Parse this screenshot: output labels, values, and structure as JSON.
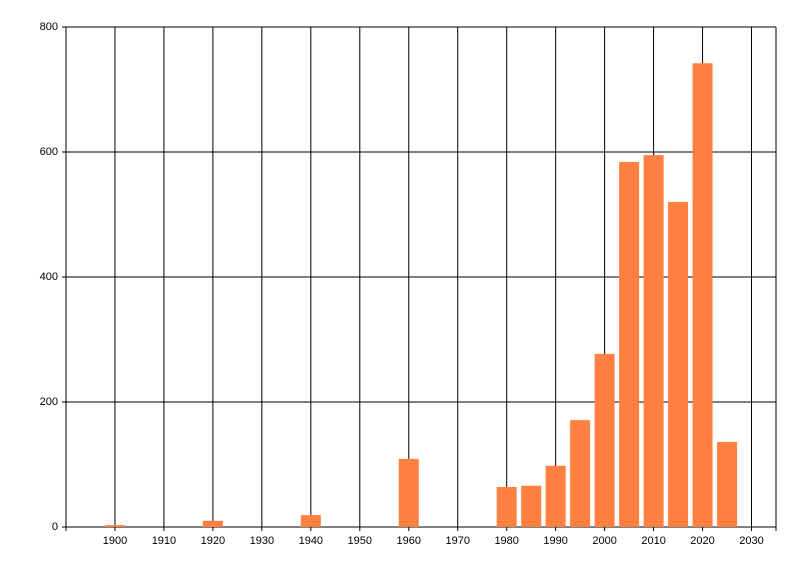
{
  "chart_data": {
    "type": "bar",
    "x": [
      1900,
      1920,
      1940,
      1960,
      1980,
      1985,
      1990,
      1995,
      2000,
      2005,
      2010,
      2015,
      2020,
      2025
    ],
    "values": [
      3,
      10,
      19,
      109,
      64,
      66,
      98,
      171,
      277,
      584,
      595,
      520,
      742,
      136
    ],
    "color": "#ff8040",
    "xlim": [
      1890,
      2035
    ],
    "xticks": [
      1900,
      1910,
      1920,
      1930,
      1940,
      1950,
      1960,
      1970,
      1980,
      1990,
      2000,
      2010,
      2020,
      2030
    ],
    "ylim": [
      0,
      800
    ],
    "yticks": [
      0,
      200,
      400,
      600,
      800
    ],
    "grid": true
  }
}
